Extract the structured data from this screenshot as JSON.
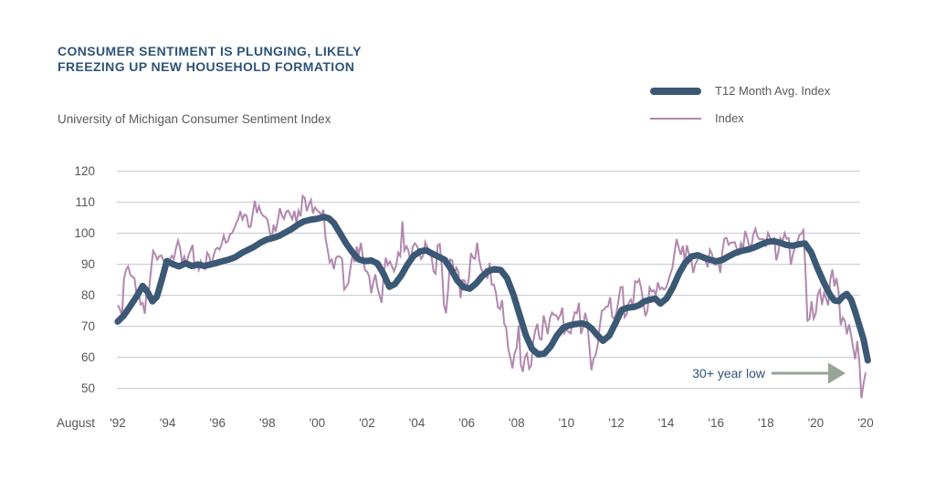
{
  "header": {
    "title_lines": [
      "Consumer sentiment is plunging, likely",
      "freezing up new household formation"
    ],
    "title_color": "#2e5478",
    "subtitle": "University of Michigan Consumer Sentiment Index"
  },
  "legend": [
    {
      "label": "T12 Month Avg. Index",
      "color": "#3b5875",
      "thickness": 8
    },
    {
      "label": "Index",
      "color": "#b288ae",
      "thickness": 2
    }
  ],
  "annotation": {
    "label": "30+ year low",
    "text_color": "#2e5478",
    "arrow_color": "#96a596"
  },
  "axis": {
    "x_month_label": "August",
    "x_ticks": [
      "'92",
      "'94",
      "'96",
      "'98",
      "'00",
      "'02",
      "'04",
      "'06",
      "'08",
      "'10",
      "'12",
      "'14",
      "'16",
      "'18",
      "'20",
      "'20"
    ],
    "y_ticks": [
      120,
      110,
      100,
      90,
      80,
      70,
      60,
      50
    ],
    "grid_color": "#c7cad3",
    "text_color": "#55565a"
  },
  "chart_data": {
    "type": "line",
    "title": "University of Michigan Consumer Sentiment Index",
    "x_start": 1992.583,
    "x_tick_interval_years": 2,
    "ylim": [
      50,
      120
    ],
    "grid": true,
    "legend_position": "top-right",
    "series": [
      {
        "name": "T12 Month Avg. Index",
        "color": "#3b5875",
        "width": 7,
        "points": [
          [
            1992.58,
            71.5
          ],
          [
            1992.83,
            73.5
          ],
          [
            1993.08,
            76.5
          ],
          [
            1993.33,
            79.5
          ],
          [
            1993.58,
            83.0
          ],
          [
            1993.78,
            81.0
          ],
          [
            1993.97,
            78.0
          ],
          [
            1994.15,
            79.5
          ],
          [
            1994.35,
            85.0
          ],
          [
            1994.55,
            91.0
          ],
          [
            1994.8,
            90.0
          ],
          [
            1995.05,
            89.3
          ],
          [
            1995.3,
            90.3
          ],
          [
            1995.55,
            89.4
          ],
          [
            1995.8,
            89.9
          ],
          [
            1996.05,
            89.4
          ],
          [
            1996.3,
            89.9
          ],
          [
            1996.55,
            90.4
          ],
          [
            1996.8,
            91.0
          ],
          [
            1997.05,
            91.5
          ],
          [
            1997.3,
            92.3
          ],
          [
            1997.55,
            93.6
          ],
          [
            1997.8,
            94.6
          ],
          [
            1998.05,
            95.6
          ],
          [
            1998.3,
            96.9
          ],
          [
            1998.55,
            97.9
          ],
          [
            1998.8,
            98.4
          ],
          [
            1999.05,
            99.1
          ],
          [
            1999.3,
            100.2
          ],
          [
            1999.55,
            101.3
          ],
          [
            1999.8,
            102.7
          ],
          [
            2000.05,
            103.8
          ],
          [
            2000.3,
            104.3
          ],
          [
            2000.55,
            104.6
          ],
          [
            2000.86,
            105.2
          ],
          [
            2001.05,
            104.8
          ],
          [
            2001.25,
            103.3
          ],
          [
            2001.5,
            100.0
          ],
          [
            2001.75,
            96.6
          ],
          [
            2002.0,
            93.8
          ],
          [
            2002.25,
            91.6
          ],
          [
            2002.5,
            91.0
          ],
          [
            2002.75,
            91.2
          ],
          [
            2003.0,
            90.2
          ],
          [
            2003.25,
            86.8
          ],
          [
            2003.48,
            82.7
          ],
          [
            2003.7,
            83.6
          ],
          [
            2003.95,
            86.3
          ],
          [
            2004.2,
            89.8
          ],
          [
            2004.45,
            92.7
          ],
          [
            2004.7,
            94.1
          ],
          [
            2004.95,
            94.5
          ],
          [
            2005.2,
            93.4
          ],
          [
            2005.45,
            92.4
          ],
          [
            2005.7,
            91.4
          ],
          [
            2005.95,
            88.4
          ],
          [
            2006.2,
            84.8
          ],
          [
            2006.45,
            82.6
          ],
          [
            2006.7,
            82.1
          ],
          [
            2006.95,
            83.7
          ],
          [
            2007.2,
            86.1
          ],
          [
            2007.45,
            87.8
          ],
          [
            2007.7,
            88.4
          ],
          [
            2007.95,
            88.1
          ],
          [
            2008.2,
            85.5
          ],
          [
            2008.45,
            80.3
          ],
          [
            2008.7,
            73.7
          ],
          [
            2008.95,
            67.2
          ],
          [
            2009.2,
            62.7
          ],
          [
            2009.45,
            60.9
          ],
          [
            2009.7,
            61.2
          ],
          [
            2009.95,
            63.5
          ],
          [
            2010.2,
            67.0
          ],
          [
            2010.45,
            69.5
          ],
          [
            2010.7,
            70.3
          ],
          [
            2010.95,
            70.7
          ],
          [
            2011.2,
            70.9
          ],
          [
            2011.4,
            70.5
          ],
          [
            2011.6,
            69.2
          ],
          [
            2011.8,
            67.3
          ],
          [
            2012.05,
            65.3
          ],
          [
            2012.3,
            67.0
          ],
          [
            2012.55,
            71.0
          ],
          [
            2012.8,
            75.3
          ],
          [
            2013.05,
            76.0
          ],
          [
            2013.3,
            76.2
          ],
          [
            2013.5,
            76.8
          ],
          [
            2013.7,
            78.0
          ],
          [
            2013.95,
            78.6
          ],
          [
            2014.15,
            78.9
          ],
          [
            2014.35,
            77.3
          ],
          [
            2014.6,
            79.0
          ],
          [
            2014.85,
            82.5
          ],
          [
            2015.1,
            87.0
          ],
          [
            2015.35,
            90.5
          ],
          [
            2015.6,
            92.5
          ],
          [
            2015.85,
            92.9
          ],
          [
            2016.1,
            92.1
          ],
          [
            2016.35,
            91.4
          ],
          [
            2016.6,
            90.9
          ],
          [
            2016.85,
            91.4
          ],
          [
            2017.1,
            92.6
          ],
          [
            2017.35,
            93.6
          ],
          [
            2017.6,
            94.3
          ],
          [
            2017.9,
            94.8
          ],
          [
            2018.15,
            95.5
          ],
          [
            2018.4,
            96.4
          ],
          [
            2018.65,
            97.2
          ],
          [
            2018.9,
            97.4
          ],
          [
            2019.15,
            96.9
          ],
          [
            2019.4,
            96.2
          ],
          [
            2019.65,
            95.9
          ],
          [
            2019.9,
            96.4
          ],
          [
            2020.15,
            96.7
          ],
          [
            2020.4,
            93.8
          ],
          [
            2020.65,
            88.8
          ],
          [
            2020.9,
            84.2
          ],
          [
            2021.15,
            80.2
          ],
          [
            2021.33,
            78.3
          ],
          [
            2021.5,
            78.1
          ],
          [
            2021.67,
            79.6
          ],
          [
            2021.83,
            80.4
          ],
          [
            2022.0,
            78.6
          ],
          [
            2022.17,
            74.6
          ],
          [
            2022.33,
            70.3
          ],
          [
            2022.5,
            65.8
          ],
          [
            2022.67,
            59.0
          ]
        ]
      },
      {
        "name": "Index",
        "color": "#b288ae",
        "width": 2,
        "start_label": "August 1992, monthly",
        "monthly_values": [
          76.8,
          75.5,
          73.3,
          85.3,
          88.2,
          89.3,
          86.6,
          85.9,
          85.6,
          80.3,
          81.5,
          77.0,
          77.5,
          74.0,
          82.7,
          81.2,
          88.2,
          94.3,
          93.2,
          91.5,
          92.6,
          92.8,
          91.2,
          89.0,
          91.7,
          91.5,
          92.7,
          91.6,
          95.1,
          97.6,
          95.1,
          90.3,
          92.5,
          89.8,
          92.7,
          94.4,
          96.2,
          88.9,
          90.2,
          88.2,
          91.0,
          89.3,
          88.5,
          93.7,
          92.7,
          89.4,
          92.4,
          94.7,
          95.3,
          94.7,
          96.5,
          99.2,
          96.9,
          97.4,
          99.7,
          100.0,
          101.4,
          103.2,
          104.5,
          107.1,
          104.4,
          106.0,
          105.6,
          102.0,
          102.1,
          106.6,
          110.4,
          106.5,
          108.7,
          106.5,
          105.6,
          105.2,
          104.4,
          100.9,
          97.4,
          102.7,
          100.5,
          103.9,
          108.1,
          105.7,
          104.6,
          106.8,
          107.3,
          106.0,
          104.5,
          107.2,
          103.2,
          107.2,
          105.4,
          112.0,
          111.3,
          107.1,
          109.2,
          110.7,
          106.4,
          108.3,
          107.3,
          106.8,
          105.8,
          107.6,
          98.4,
          94.7,
          90.6,
          91.5,
          88.4,
          92.0,
          92.6,
          92.4,
          91.5,
          81.8,
          82.7,
          83.9,
          88.8,
          93.0,
          90.7,
          95.7,
          93.0,
          96.9,
          92.4,
          88.1,
          87.6,
          86.1,
          80.6,
          84.2,
          86.7,
          82.4,
          79.9,
          77.6,
          86.0,
          92.1,
          89.7,
          90.9,
          89.3,
          87.7,
          89.6,
          93.7,
          92.6,
          103.8,
          94.4,
          95.8,
          94.2,
          90.2,
          95.6,
          96.7,
          95.9,
          94.2,
          91.7,
          92.8,
          97.1,
          95.5,
          94.1,
          92.6,
          87.7,
          86.9,
          96.0,
          96.5,
          89.1,
          76.9,
          74.2,
          81.6,
          91.5,
          91.2,
          86.7,
          88.9,
          87.4,
          79.1,
          84.9,
          84.7,
          82.0,
          85.4,
          93.6,
          92.1,
          91.7,
          96.9,
          91.3,
          88.4,
          87.1,
          88.3,
          85.3,
          90.4,
          83.4,
          83.4,
          80.9,
          76.1,
          75.5,
          78.4,
          70.8,
          69.5,
          62.6,
          59.8,
          56.4,
          61.2,
          63.0,
          70.3,
          57.6,
          55.3,
          60.1,
          61.2,
          56.3,
          57.3,
          65.1,
          68.7,
          70.8,
          66.0,
          65.7,
          73.5,
          70.6,
          67.4,
          72.5,
          74.4,
          73.6,
          73.6,
          72.2,
          73.6,
          76.0,
          67.8,
          68.9,
          68.2,
          67.7,
          71.6,
          74.5,
          74.2,
          77.5,
          67.5,
          69.8,
          74.3,
          71.5,
          63.7,
          55.8,
          59.5,
          60.8,
          63.7,
          69.9,
          75.0,
          75.3,
          76.2,
          76.4,
          79.3,
          73.2,
          72.3,
          74.3,
          78.3,
          82.6,
          82.7,
          72.9,
          73.8,
          77.6,
          78.6,
          76.4,
          84.5,
          84.1,
          85.1,
          82.1,
          77.5,
          73.2,
          75.1,
          82.5,
          81.2,
          81.6,
          80.0,
          84.1,
          81.9,
          82.5,
          81.8,
          82.5,
          84.6,
          86.9,
          88.8,
          93.6,
          98.1,
          95.4,
          93.0,
          95.9,
          90.7,
          96.1,
          93.1,
          91.9,
          87.2,
          90.0,
          91.3,
          92.6,
          92.0,
          91.7,
          91.0,
          89.0,
          94.7,
          93.5,
          90.0,
          89.8,
          91.2,
          87.2,
          93.8,
          98.2,
          98.5,
          96.3,
          96.9,
          97.0,
          97.1,
          95.0,
          93.4,
          96.8,
          95.1,
          100.7,
          98.5,
          95.9,
          95.7,
          99.7,
          101.4,
          98.8,
          98.0,
          98.2,
          97.9,
          96.2,
          100.1,
          98.6,
          97.5,
          98.3,
          91.2,
          93.8,
          98.4,
          97.2,
          100.0,
          98.2,
          98.4,
          89.8,
          93.2,
          95.5,
          96.8,
          99.3,
          99.8,
          101.0,
          89.1,
          71.8,
          72.3,
          78.1,
          72.5,
          74.1,
          80.4,
          81.8,
          76.9,
          80.7,
          79.0,
          76.8,
          84.9,
          88.3,
          82.9,
          85.5,
          81.2,
          70.3,
          72.8,
          71.7,
          67.4,
          70.6,
          67.2,
          62.8,
          59.4,
          65.2,
          58.4,
          46.8,
          51.5,
          55.1
        ]
      }
    ]
  }
}
